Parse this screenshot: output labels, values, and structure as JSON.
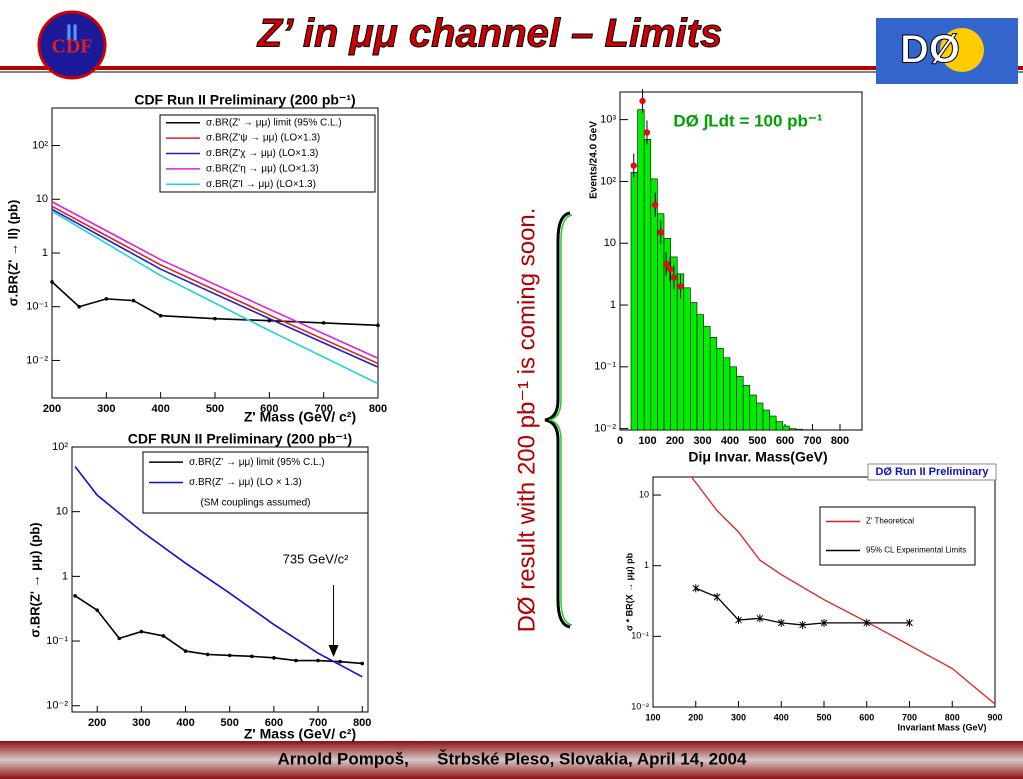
{
  "slide": {
    "title": "Z’ in μμ channel – Limits",
    "note": "DØ result with 200 pb⁻¹ is coming soon.",
    "footer": "Arnold Pompoš,      Štrbské Pleso, Slovakia, April 14, 2004",
    "logos": {
      "left": "CDF",
      "left_mark": "II",
      "right": "DØ"
    }
  },
  "chart_data": [
    {
      "type": "line",
      "title": "CDF Run II Preliminary (200 pb⁻¹)",
      "x_label": "Z' Mass (GeV/ c²)",
      "y_label": "σ.BR(Z' → ll) (pb)",
      "log_y": true,
      "grid": false,
      "xlim": [
        200,
        800
      ],
      "xticks": [
        200,
        300,
        400,
        500,
        600,
        700,
        800
      ],
      "ylim": [
        0.002,
        500
      ],
      "yticks": [
        {
          "value": 0.01,
          "label": "10⁻²"
        },
        {
          "value": 0.1,
          "label": "10⁻¹"
        },
        1,
        10,
        {
          "value": 100,
          "label": "10²"
        }
      ],
      "series": [
        {
          "name": "σ.BR(Z' → μμ) limit (95% C.L.)",
          "color": "#000000",
          "marker": "dot",
          "x": [
            200,
            250,
            300,
            350,
            400,
            500,
            600,
            700,
            800
          ],
          "values": [
            0.29,
            0.1,
            0.14,
            0.13,
            0.068,
            0.06,
            0.055,
            0.05,
            0.045
          ]
        },
        {
          "name": "σ.BR(Z'ψ → μμ) (LO×1.3)",
          "color": "#e02020",
          "x": [
            200,
            400,
            600,
            800
          ],
          "values": [
            7.4,
            0.6,
            0.07,
            0.0088
          ]
        },
        {
          "name": "σ.BR(Z'χ → μμ) (LO×1.3)",
          "color": "#2020c0",
          "x": [
            200,
            400,
            600,
            800
          ],
          "values": [
            6.5,
            0.5,
            0.06,
            0.0075
          ]
        },
        {
          "name": "σ.BR(Z'η → μμ) (LO×1.3)",
          "color": "#e020e0",
          "x": [
            200,
            400,
            600,
            800
          ],
          "values": [
            9,
            0.75,
            0.09,
            0.011
          ]
        },
        {
          "name": "σ.BR(Z'I → μμ) (LO×1.3)",
          "color": "#20d0e0",
          "x": [
            200,
            400,
            600,
            800
          ],
          "values": [
            6,
            0.38,
            0.036,
            0.0037
          ]
        }
      ]
    },
    {
      "type": "line",
      "title": "CDF RUN II Preliminary (200 pb⁻¹)",
      "x_label": "Z' Mass (GeV/ c²)",
      "y_label": "σ.BR(Z' → μμ) (pb)",
      "log_y": true,
      "grid": false,
      "xlim": [
        143,
        813
      ],
      "xticks": [
        200,
        300,
        400,
        500,
        600,
        700,
        800
      ],
      "ylim": [
        0.008,
        100
      ],
      "yticks": [
        {
          "value": 0.01,
          "label": "10⁻²"
        },
        {
          "value": 0.1,
          "label": "10⁻¹"
        },
        1,
        10,
        {
          "value": 100,
          "label": "10²"
        }
      ],
      "legend_note": "(SM couplings assumed)",
      "annotations": [
        {
          "text": "735 GeV/c²",
          "x": 735
        }
      ],
      "series": [
        {
          "name": "σ.BR(Z' → μμ) limit (95% C.L.)",
          "color": "#000000",
          "marker": "dot",
          "x": [
            150,
            200,
            250,
            300,
            350,
            400,
            450,
            500,
            550,
            600,
            650,
            700,
            750,
            800
          ],
          "values": [
            0.5,
            0.3,
            0.11,
            0.14,
            0.12,
            0.07,
            0.062,
            0.06,
            0.058,
            0.055,
            0.05,
            0.05,
            0.048,
            0.045
          ]
        },
        {
          "name": "σ.BR(Z' → μμ) (LO × 1.3)",
          "color": "#1010d0",
          "x": [
            150,
            200,
            300,
            400,
            500,
            600,
            700,
            800
          ],
          "values": [
            50,
            18,
            5,
            1.6,
            0.55,
            0.18,
            0.065,
            0.028
          ]
        }
      ]
    },
    {
      "type": "histogram",
      "title": "DØ ∫Ldt = 100 pb⁻¹",
      "x_label": "Diμ Invar. Mass(GeV)",
      "y_label": "Events/24.0 GeV",
      "log_y": true,
      "grid": false,
      "xlim": [
        0,
        880
      ],
      "xticks": [
        0,
        100,
        200,
        300,
        400,
        500,
        600,
        700,
        800
      ],
      "ylim": [
        0.0095,
        2800
      ],
      "yticks": [
        {
          "value": 0.01,
          "label": "10⁻²"
        },
        {
          "value": 0.1,
          "label": "10⁻¹"
        },
        1,
        10,
        {
          "value": 100,
          "label": "10²"
        },
        {
          "value": 1000,
          "label": "10³"
        }
      ],
      "color": "#00ee00",
      "bins": [
        40,
        64,
        88,
        112,
        136,
        160,
        184,
        208,
        232,
        256,
        280,
        304,
        328,
        352,
        376,
        400,
        424,
        448,
        472,
        496,
        520,
        544,
        568,
        592,
        616,
        640,
        664,
        688
      ],
      "values": [
        140,
        1450,
        480,
        110,
        30,
        12,
        6,
        3.2,
        1.9,
        1.1,
        0.7,
        0.45,
        0.3,
        0.2,
        0.14,
        0.1,
        0.07,
        0.05,
        0.035,
        0.026,
        0.02,
        0.016,
        0.013,
        0.011,
        0.01,
        0.0098,
        0.0096
      ],
      "points": {
        "color": "#e01010",
        "x": [
          50,
          82,
          98,
          128,
          148,
          168,
          182,
          196,
          220
        ],
        "values": [
          180,
          2000,
          620,
          42,
          15,
          4.6,
          3.8,
          2.8,
          2
        ]
      }
    },
    {
      "type": "line",
      "title": "DØ Run II Preliminary",
      "x_label": "Invariant Mass (GeV)",
      "y_label": "σ * BR(X → μμ) pb",
      "log_y": true,
      "grid": false,
      "xlim": [
        100,
        900
      ],
      "xticks": [
        100,
        200,
        300,
        400,
        500,
        600,
        700,
        800,
        900
      ],
      "ylim": [
        0.01,
        18
      ],
      "yticks": [
        {
          "value": 0.01,
          "label": "10⁻²"
        },
        {
          "value": 0.1,
          "label": "10⁻¹"
        },
        1,
        10
      ],
      "series": [
        {
          "name": "Z' Theoretical",
          "color": "#e02020",
          "x": [
            190,
            250,
            300,
            350,
            400,
            500,
            600,
            700,
            800,
            900
          ],
          "values": [
            18,
            6,
            3,
            1.2,
            0.75,
            0.33,
            0.16,
            0.075,
            0.035,
            0.011
          ]
        },
        {
          "name": "95% CL Experimental Limits",
          "color": "#000000",
          "marker": "star",
          "x": [
            200,
            250,
            300,
            350,
            400,
            450,
            500,
            600,
            700
          ],
          "values": [
            0.48,
            0.36,
            0.17,
            0.18,
            0.155,
            0.145,
            0.155,
            0.155,
            0.155
          ]
        }
      ]
    }
  ]
}
